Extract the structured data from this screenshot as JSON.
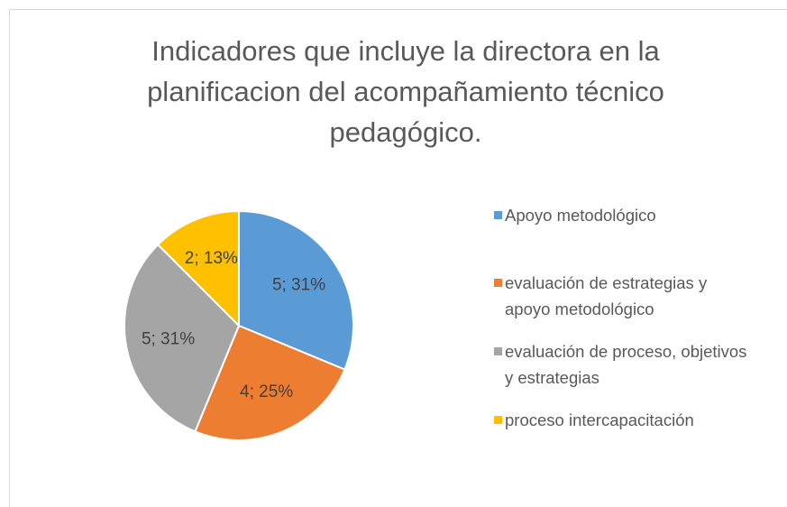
{
  "chart_data": {
    "type": "pie",
    "title": "Indicadores que incluye la directora en la planificacion del acompañamiento técnico pedagógico.",
    "categories": [
      "Apoyo metodológico",
      "evaluación de estrategias y apoyo metodológico",
      "evaluación de proceso, objetivos y estrategias",
      "proceso intercapacitación"
    ],
    "values": [
      5,
      4,
      5,
      2
    ],
    "value_labels": [
      "5; 31%",
      "4; 25%",
      "5; 31%",
      "2; 13%"
    ],
    "colors": [
      "#5b9bd5",
      "#ed7d31",
      "#a5a5a5",
      "#ffc000"
    ],
    "legend": "right"
  }
}
